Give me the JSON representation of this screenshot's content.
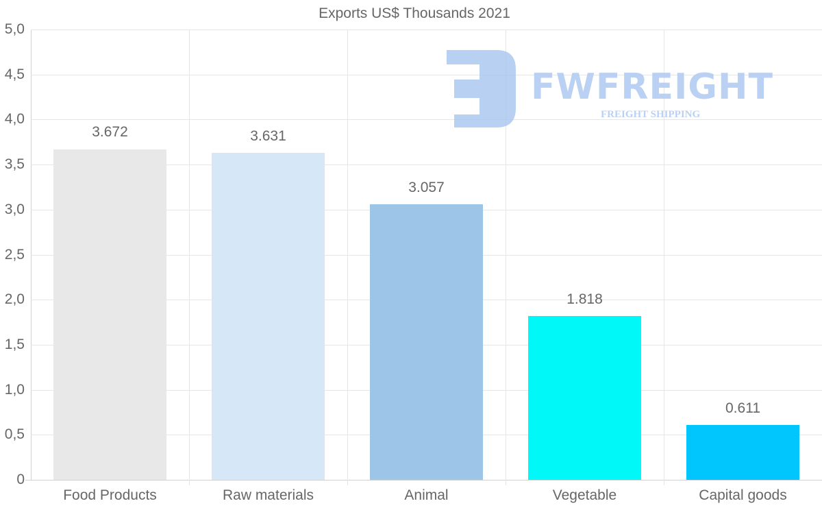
{
  "chart_data": {
    "type": "bar",
    "title": "Exports US$ Thousands 2021",
    "xlabel": "",
    "ylabel": "",
    "categories": [
      "Food Products",
      "Raw materials",
      "Animal",
      "Vegetable",
      "Capital goods"
    ],
    "values": [
      3.672,
      3.631,
      3.057,
      1.818,
      0.611
    ],
    "value_labels": [
      "3.672",
      "3.631",
      "3.057",
      "1.818",
      "0.611"
    ],
    "colors": [
      "#e8e8e8",
      "#d6e7f8",
      "#9dc5e8",
      "#00f8f8",
      "#00c6fd"
    ],
    "ylim": [
      0,
      5.0
    ],
    "yticks": [
      "0",
      "0,5",
      "1,0",
      "1,5",
      "2,0",
      "2,5",
      "3,0",
      "3,5",
      "4,0",
      "4,5",
      "5,0"
    ],
    "grid": true,
    "legend": null
  },
  "watermark": {
    "brand": "FWFREIGHT",
    "tagline": "FREIGHT SHIPPING",
    "color": "#b3cdf2"
  }
}
